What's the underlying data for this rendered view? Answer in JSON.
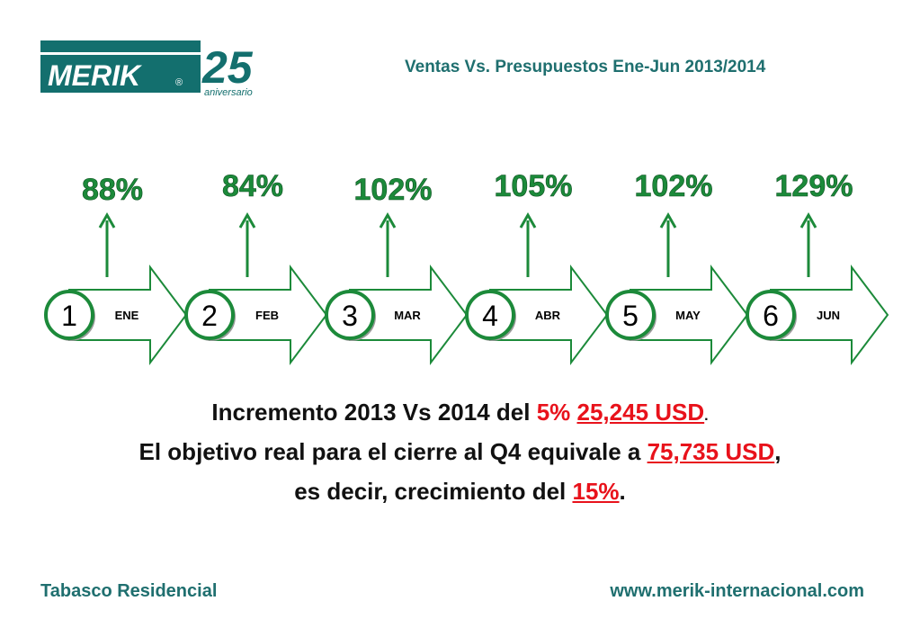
{
  "logo": {
    "brand": "MERIK",
    "registered": "®",
    "number": "25",
    "subtitle": "aniversario"
  },
  "header": {
    "title": "Ventas Vs. Presupuestos Ene-Jun 2013/2014"
  },
  "timeline": {
    "items": [
      {
        "num": "1",
        "month": "ENE",
        "percent": "88%"
      },
      {
        "num": "2",
        "month": "FEB",
        "percent": "84%"
      },
      {
        "num": "3",
        "month": "MAR",
        "percent": "102%"
      },
      {
        "num": "4",
        "month": "ABR",
        "percent": "105%"
      },
      {
        "num": "5",
        "month": "MAY",
        "percent": "102%"
      },
      {
        "num": "6",
        "month": "JUN",
        "percent": "129%"
      }
    ]
  },
  "summary": {
    "line1_text": "Incremento 2013 Vs 2014 del ",
    "line1_percent": "5%",
    "line1_amount": "25,245 USD",
    "line1_end": ".",
    "line2_text": "El objetivo real para el cierre al Q4 equivale a ",
    "line2_amount": "75,735 USD",
    "line2_end": ",",
    "line3_text": "es decir, crecimiento del ",
    "line3_percent": "15%",
    "line3_end": "."
  },
  "footer": {
    "left": "Tabasco Residencial",
    "right": "www.merik-internacional.com"
  },
  "colors": {
    "green": "#1c8a3a",
    "teal": "#1f6f6f",
    "red": "#e8121b",
    "logo_bg": "#136f6e"
  }
}
